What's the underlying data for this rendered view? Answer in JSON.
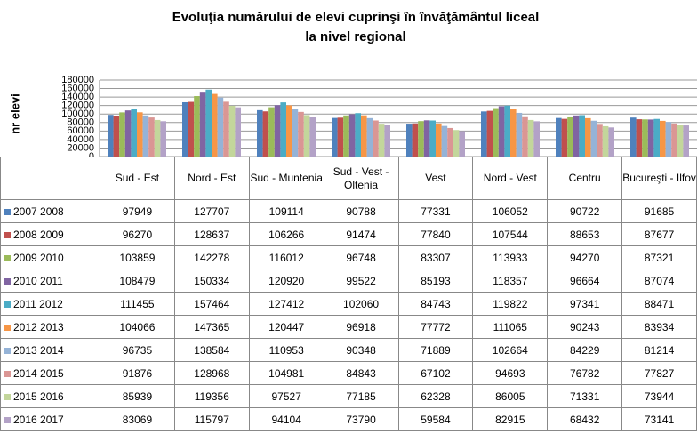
{
  "chart_data": {
    "type": "bar",
    "title": "Evoluţia numărului de elevi cuprinşi în învăţământul liceal",
    "subtitle": "la nivel  regional",
    "y_label": "nr elevi",
    "categories": [
      "Sud - Est",
      "Nord - Est",
      "Sud - Muntenia",
      "Sud - Vest - Oltenia",
      "Vest",
      "Nord - Vest",
      "Centru",
      "Bucureşti - Ilfov"
    ],
    "ylim": [
      0,
      180000
    ],
    "yticks": [
      0,
      20000,
      40000,
      60000,
      80000,
      100000,
      120000,
      140000,
      160000,
      180000
    ],
    "grid": true,
    "series": [
      {
        "name": "2007 2008",
        "color": "#4f81bd",
        "values": [
          97949,
          127707,
          109114,
          90788,
          77331,
          106052,
          90722,
          91685
        ]
      },
      {
        "name": "2008 2009",
        "color": "#c0504d",
        "values": [
          96270,
          128637,
          106266,
          91474,
          77840,
          107544,
          88653,
          87677
        ]
      },
      {
        "name": "2009 2010",
        "color": "#9bbb59",
        "values": [
          103859,
          142278,
          116012,
          96748,
          83307,
          113933,
          94270,
          87321
        ]
      },
      {
        "name": "2010 2011",
        "color": "#8064a2",
        "values": [
          108479,
          150334,
          120920,
          99522,
          85193,
          118357,
          96664,
          87074
        ]
      },
      {
        "name": "2011 2012",
        "color": "#4bacc6",
        "values": [
          111455,
          157464,
          127412,
          102060,
          84743,
          119822,
          97341,
          88471
        ]
      },
      {
        "name": "2012 2013",
        "color": "#f79646",
        "values": [
          104066,
          147365,
          120447,
          96918,
          77772,
          111065,
          90243,
          83934
        ]
      },
      {
        "name": "2013 2014",
        "color": "#95b3d7",
        "values": [
          96735,
          138584,
          110953,
          90348,
          71889,
          102664,
          84229,
          81214
        ]
      },
      {
        "name": "2014 2015",
        "color": "#da9694",
        "values": [
          91876,
          128968,
          104981,
          84843,
          67102,
          94693,
          76782,
          77827
        ]
      },
      {
        "name": "2015 2016",
        "color": "#c3d69b",
        "values": [
          85939,
          119356,
          97527,
          77185,
          62328,
          86005,
          71331,
          73944
        ]
      },
      {
        "name": "2016 2017",
        "color": "#b3a2c7",
        "values": [
          83069,
          115797,
          94104,
          73790,
          59584,
          82915,
          68432,
          73141
        ]
      }
    ]
  }
}
